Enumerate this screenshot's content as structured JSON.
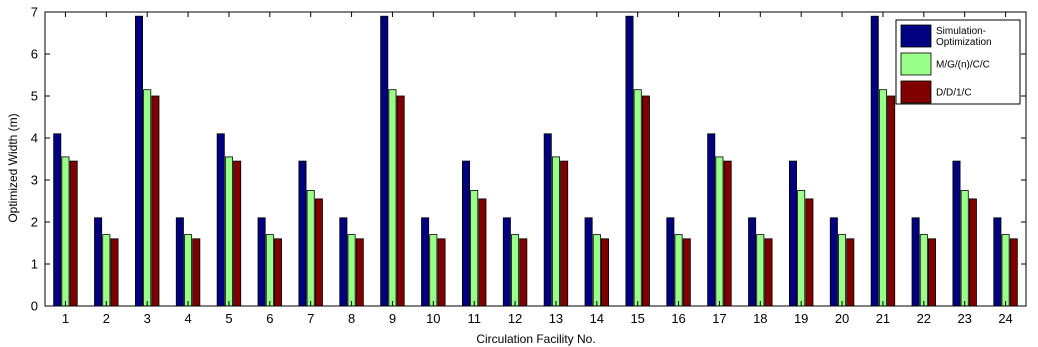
{
  "chart_data": {
    "type": "bar",
    "title": "",
    "xlabel": "Circulation Facility No.",
    "ylabel": "Optimized Width (m)",
    "ylim": [
      0,
      7
    ],
    "yticks": [
      0,
      1,
      2,
      3,
      4,
      5,
      6,
      7
    ],
    "grid": false,
    "legend_position": "top-right",
    "categories": [
      "1",
      "2",
      "3",
      "4",
      "5",
      "6",
      "7",
      "8",
      "9",
      "10",
      "11",
      "12",
      "13",
      "14",
      "15",
      "16",
      "17",
      "18",
      "19",
      "20",
      "21",
      "22",
      "23",
      "24"
    ],
    "series": [
      {
        "name": "Simulation-Optimization",
        "legend_lines": [
          "Simulation-",
          "Optimization"
        ],
        "color": "#000080",
        "values": [
          4.1,
          2.1,
          6.9,
          2.1,
          4.1,
          2.1,
          3.45,
          2.1,
          6.9,
          2.1,
          3.45,
          2.1,
          4.1,
          2.1,
          6.9,
          2.1,
          4.1,
          2.1,
          3.45,
          2.1,
          6.9,
          2.1,
          3.45,
          2.1
        ]
      },
      {
        "name": "M/G/(n)/C/C",
        "legend_lines": [
          "M/G/(n)/C/C"
        ],
        "color": "#99ff88",
        "values": [
          3.55,
          1.7,
          5.15,
          1.7,
          3.55,
          1.7,
          2.75,
          1.7,
          5.15,
          1.7,
          2.75,
          1.7,
          3.55,
          1.7,
          5.15,
          1.7,
          3.55,
          1.7,
          2.75,
          1.7,
          5.15,
          1.7,
          2.75,
          1.7
        ]
      },
      {
        "name": "D/D/1/C",
        "legend_lines": [
          "D/D/1/C"
        ],
        "color": "#800000",
        "values": [
          3.45,
          1.6,
          5.0,
          1.6,
          3.45,
          1.6,
          2.55,
          1.6,
          5.0,
          1.6,
          2.55,
          1.6,
          3.45,
          1.6,
          5.0,
          1.6,
          3.45,
          1.6,
          2.55,
          1.6,
          5.0,
          1.6,
          2.55,
          1.6
        ]
      }
    ]
  }
}
